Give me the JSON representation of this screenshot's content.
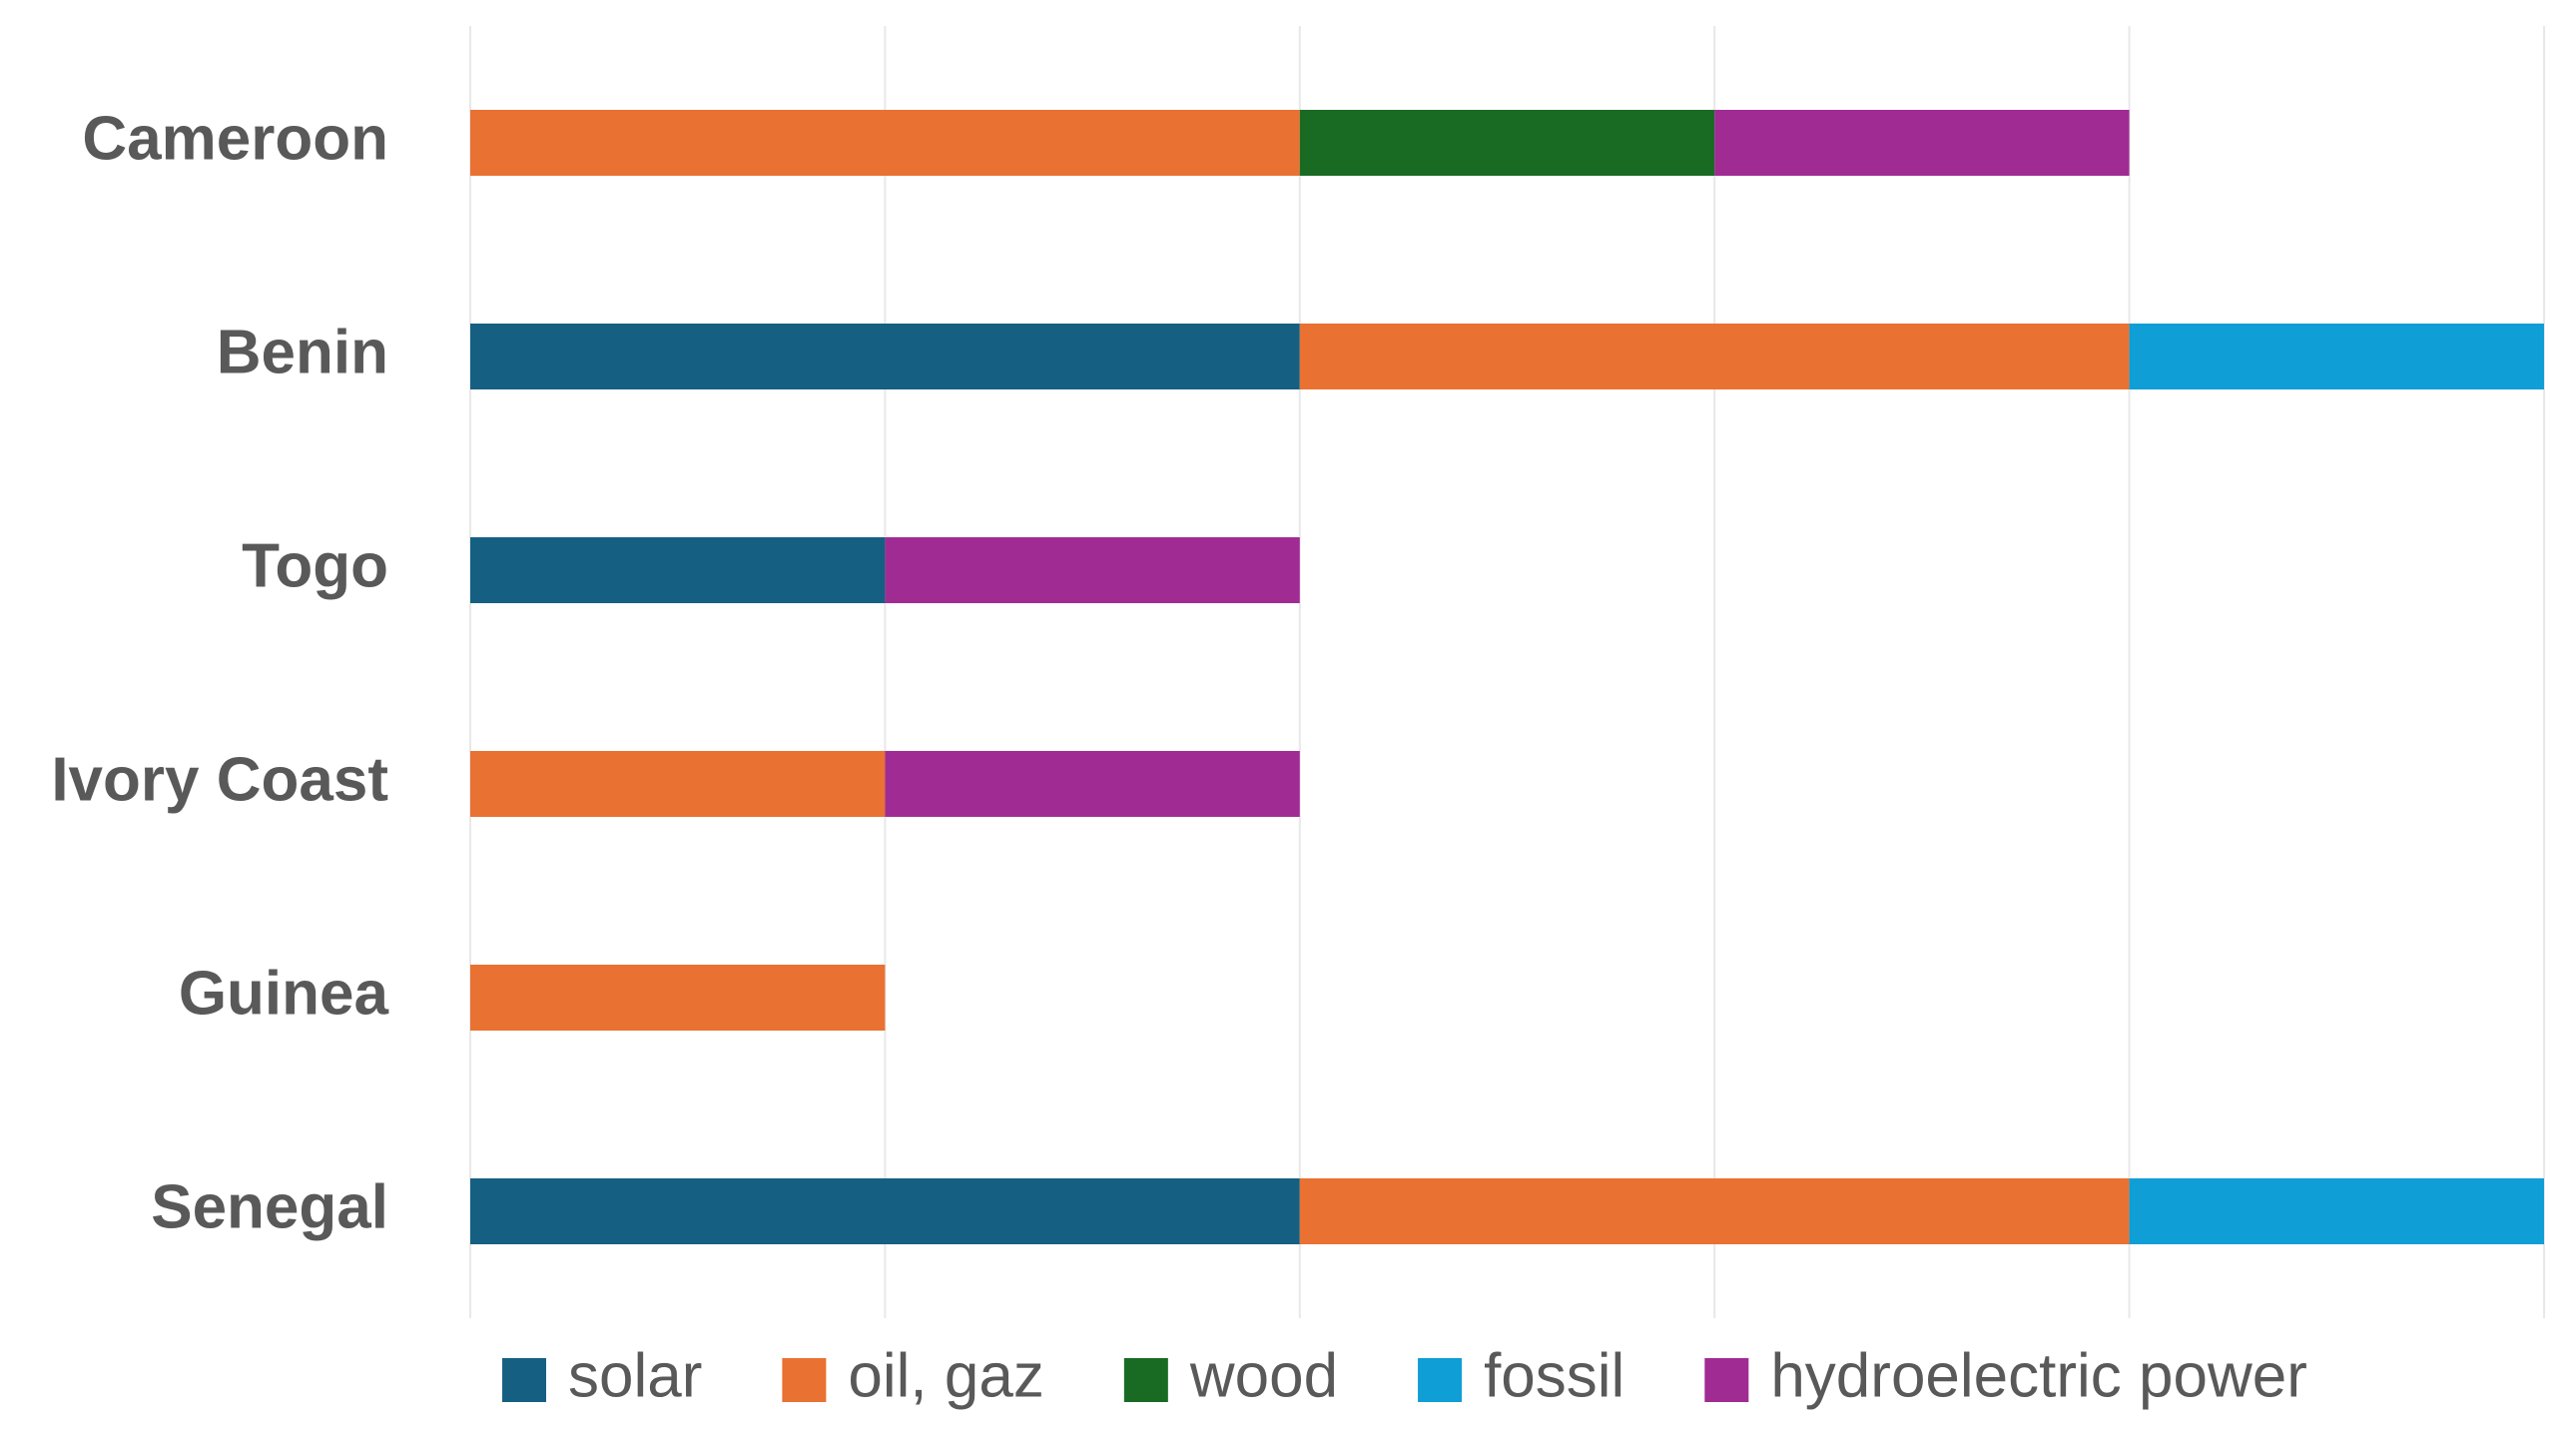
{
  "chart_data": {
    "type": "stacked-barh",
    "categories": [
      "Cameroon",
      "Benin",
      "Togo",
      "Ivory Coast",
      "Guinea",
      "Senegal"
    ],
    "series": [
      {
        "name": "solar",
        "color": "#156082",
        "values": [
          0,
          2,
          1,
          0,
          0,
          2
        ]
      },
      {
        "name": "oil, gaz",
        "color": "#e97132",
        "values": [
          2,
          2,
          0,
          1,
          1,
          2
        ]
      },
      {
        "name": "wood",
        "color": "#196b24",
        "values": [
          1,
          0,
          0,
          0,
          0,
          0
        ]
      },
      {
        "name": "fossil",
        "color": "#0f9ed5",
        "values": [
          0,
          1,
          0,
          0,
          0,
          1
        ]
      },
      {
        "name": "hydroelectric power",
        "color": "#a02b93",
        "values": [
          1,
          0,
          1,
          1,
          0,
          0
        ]
      }
    ],
    "xlim": [
      0,
      5
    ],
    "xticks": [
      0,
      1,
      2,
      3,
      4,
      5
    ],
    "grid": true,
    "legend": "bottom"
  }
}
